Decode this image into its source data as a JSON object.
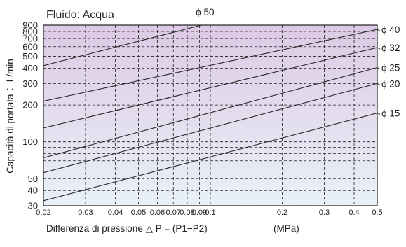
{
  "chart_data": {
    "type": "line",
    "title": "Fluido: Acqua",
    "xlabel": "Differenza di pressione △ P = (P1−P2)",
    "xunit": "(MPa)",
    "ylabel": "Capacità di portata ：L/min",
    "xscale": "log",
    "yscale": "log",
    "xlim": [
      0.02,
      0.5
    ],
    "ylim": [
      30,
      900
    ],
    "grid": true,
    "x_ticks": [
      {
        "v": 0.02,
        "label": "0.02"
      },
      {
        "v": 0.03,
        "label": "0.03"
      },
      {
        "v": 0.04,
        "label": "0.04"
      },
      {
        "v": 0.05,
        "label": "0.05"
      },
      {
        "v": 0.06,
        "label": "0.06"
      },
      {
        "v": 0.07,
        "label": "0.07"
      },
      {
        "v": 0.08,
        "label": "0.08"
      },
      {
        "v": 0.09,
        "label": "0.09"
      },
      {
        "v": 0.1,
        "label": "0.1"
      },
      {
        "v": 0.2,
        "label": "0.2"
      },
      {
        "v": 0.3,
        "label": "0.3"
      },
      {
        "v": 0.4,
        "label": "0.4"
      },
      {
        "v": 0.5,
        "label": "0.5"
      }
    ],
    "y_ticks": [
      {
        "v": 30,
        "label": "30"
      },
      {
        "v": 40,
        "label": "40"
      },
      {
        "v": 50,
        "label": "50"
      },
      {
        "v": 60,
        "label": ""
      },
      {
        "v": 70,
        "label": ""
      },
      {
        "v": 80,
        "label": ""
      },
      {
        "v": 90,
        "label": ""
      },
      {
        "v": 100,
        "label": "100"
      },
      {
        "v": 200,
        "label": "200"
      },
      {
        "v": 300,
        "label": "300"
      },
      {
        "v": 400,
        "label": "400"
      },
      {
        "v": 500,
        "label": "500"
      },
      {
        "v": 600,
        "label": "600"
      },
      {
        "v": 700,
        "label": "700"
      },
      {
        "v": 800,
        "label": "800"
      },
      {
        "v": 900,
        "label": "900"
      }
    ],
    "series": [
      {
        "name": "ϕ 50",
        "points": [
          [
            0.02,
            420
          ],
          [
            0.1,
            940
          ]
        ]
      },
      {
        "name": "ϕ 40",
        "points": [
          [
            0.02,
            215
          ],
          [
            0.5,
            830
          ]
        ]
      },
      {
        "name": "ϕ 32",
        "points": [
          [
            0.02,
            130
          ],
          [
            0.5,
            590
          ]
        ]
      },
      {
        "name": "ϕ 25",
        "points": [
          [
            0.02,
            74
          ],
          [
            0.5,
            405
          ]
        ]
      },
      {
        "name": "ϕ 20",
        "points": [
          [
            0.02,
            56
          ],
          [
            0.5,
            300
          ]
        ]
      },
      {
        "name": "ϕ 15",
        "points": [
          [
            0.02,
            33
          ],
          [
            0.5,
            172
          ]
        ]
      }
    ],
    "colors": {
      "background_top": "#ddc9e4",
      "background_bottom": "#e9f1f8",
      "grid": "#222222",
      "line": "#2a2a2a"
    }
  }
}
